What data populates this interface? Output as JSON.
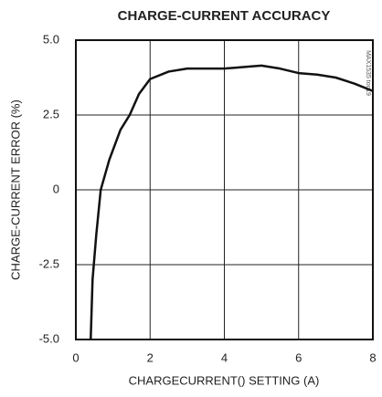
{
  "chart_data": {
    "type": "line",
    "title": "CHARGE-CURRENT ACCURACY",
    "x_label": "CHARGECURRENT() SETTING (A)",
    "y_label": "CHARGE-CURRENT ERROR (%)",
    "annotation": "MAX1535 toc19",
    "x": [
      0.4,
      0.45,
      0.55,
      0.67,
      0.9,
      1.2,
      1.45,
      1.7,
      2,
      2.5,
      3,
      3.5,
      4,
      4.5,
      5,
      5.5,
      6,
      6.5,
      7,
      7.5,
      8
    ],
    "series": [
      {
        "name": "error",
        "color": "#111111",
        "values": [
          -5,
          -3,
          -1.5,
          0,
          1,
          2,
          2.5,
          3.2,
          3.7,
          3.95,
          4.05,
          4.05,
          4.05,
          4.1,
          4.15,
          4.05,
          3.9,
          3.85,
          3.75,
          3.55,
          3.3
        ]
      }
    ],
    "xlim": [
      0,
      8
    ],
    "xticks": [
      0,
      2,
      4,
      6,
      8
    ],
    "ylim": [
      -5,
      5
    ],
    "yticks": [
      {
        "value": -5,
        "label": "-5.0"
      },
      -2.5,
      0,
      2.5,
      {
        "value": 5,
        "label": "5.0"
      }
    ],
    "grid": true
  }
}
